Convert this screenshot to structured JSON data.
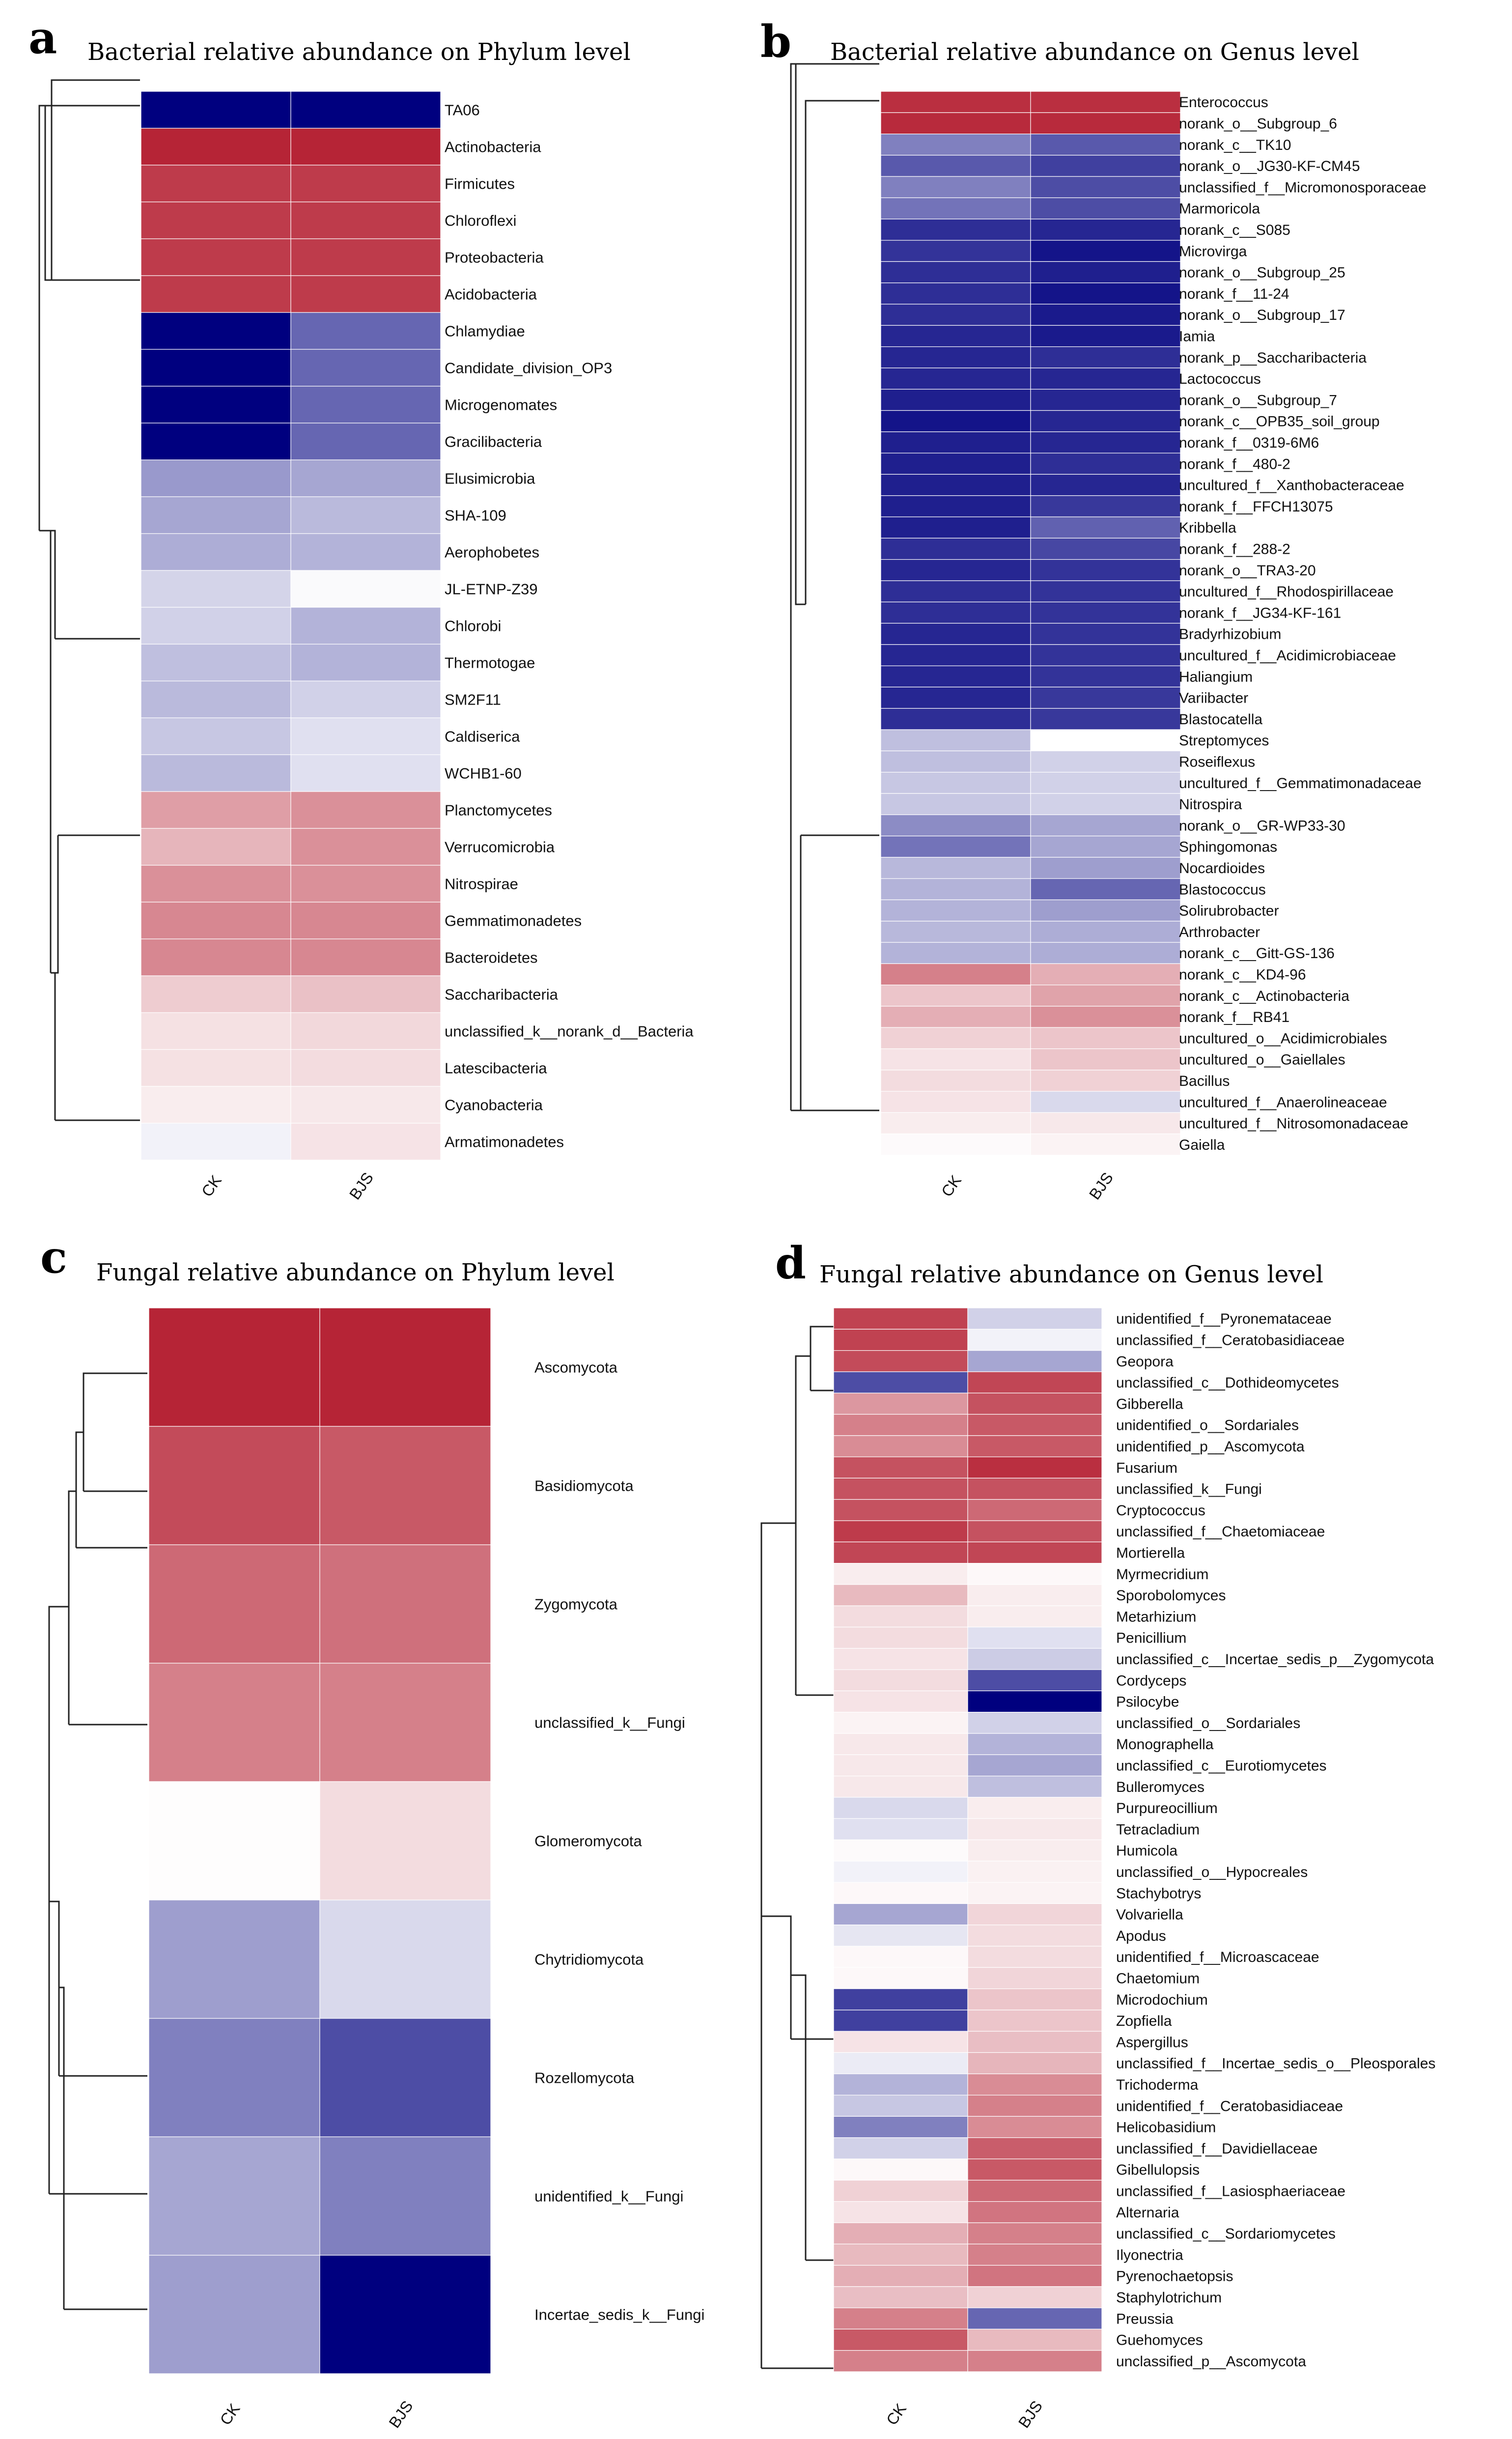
{
  "figure": {
    "columns": [
      "CK",
      "BJS"
    ]
  },
  "color_scale": {
    "low": "#00007f",
    "mid": "#ffffff",
    "high": "#b2182b"
  },
  "chart_data": [
    {
      "type": "heatmap",
      "panel": "a",
      "title": "Bacterial relative abundance on Phylum level",
      "columns": [
        "CK",
        "BJS"
      ],
      "rows": [
        "TA06",
        "Actinobacteria",
        "Firmicutes",
        "Chloroflexi",
        "Proteobacteria",
        "Acidobacteria",
        "Chlamydiae",
        "Candidate_division_OP3",
        "Microgenomates",
        "Gracilibacteria",
        "Elusimicrobia",
        "SHA-109",
        "Aerophobetes",
        "JL-ETNP-Z39",
        "Chlorobi",
        "Thermotogae",
        "SM2F11",
        "Caldiserica",
        "WCHB1-60",
        "Planctomycetes",
        "Verrucomicrobia",
        "Nitrospirae",
        "Gemmatimonadetes",
        "Bacteroidetes",
        "Saccharibacteria",
        "unclassified_k__norank_d__Bacteria",
        "Latescibacteria",
        "Cyanobacteria",
        "Armatimonadetes"
      ],
      "values": [
        [
          -1.0,
          -1.0
        ],
        [
          0.95,
          0.95
        ],
        [
          0.85,
          0.85
        ],
        [
          0.85,
          0.85
        ],
        [
          0.85,
          0.85
        ],
        [
          0.85,
          0.85
        ],
        [
          -1.0,
          -0.6
        ],
        [
          -1.0,
          -0.6
        ],
        [
          -1.0,
          -0.6
        ],
        [
          -1.0,
          -0.6
        ],
        [
          -0.4,
          -0.35
        ],
        [
          -0.35,
          -0.27
        ],
        [
          -0.32,
          -0.3
        ],
        [
          -0.17,
          -0.02
        ],
        [
          -0.18,
          -0.3
        ],
        [
          -0.25,
          -0.3
        ],
        [
          -0.27,
          -0.18
        ],
        [
          -0.22,
          -0.12
        ],
        [
          -0.27,
          -0.12
        ],
        [
          0.42,
          0.48
        ],
        [
          0.32,
          0.48
        ],
        [
          0.48,
          0.48
        ],
        [
          0.52,
          0.52
        ],
        [
          0.52,
          0.52
        ],
        [
          0.22,
          0.27
        ],
        [
          0.13,
          0.17
        ],
        [
          0.13,
          0.15
        ],
        [
          0.08,
          0.1
        ],
        [
          -0.05,
          0.12
        ]
      ]
    },
    {
      "type": "heatmap",
      "panel": "b",
      "title": "Bacterial relative abundance on Genus level",
      "columns": [
        "CK",
        "BJS"
      ],
      "rows": [
        "Enterococcus",
        "norank_o__Subgroup_6",
        "norank_c__TK10",
        "norank_o__JG30-KF-CM45",
        "unclassified_f__Micromonosporaceae",
        "Marmoricola",
        "norank_c__S085",
        "Microvirga",
        "norank_o__Subgroup_25",
        "norank_f__11-24",
        "norank_o__Subgroup_17",
        "Iamia",
        "norank_p__Saccharibacteria",
        "Lactococcus",
        "norank_o__Subgroup_7",
        "norank_c__OPB35_soil_group",
        "norank_f__0319-6M6",
        "norank_f__480-2",
        "uncultured_f__Xanthobacteraceae",
        "norank_f__FFCH13075",
        "Kribbella",
        "norank_f__288-2",
        "norank_o__TRA3-20",
        "uncultured_f__Rhodospirillaceae",
        "norank_f__JG34-KF-161",
        "Bradyrhizobium",
        "uncultured_f__Acidimicrobiaceae",
        "Haliangium",
        "Variibacter",
        "Blastocatella",
        "Streptomyces",
        "Roseiflexus",
        "uncultured_f__Gemmatimonadaceae",
        "Nitrospira",
        "norank_o__GR-WP33-30",
        "Sphingomonas",
        "Nocardioides",
        "Blastococcus",
        "Solirubrobacter",
        "Arthrobacter",
        "norank_c__Gitt-GS-136",
        "norank_c__KD4-96",
        "norank_c__Actinobacteria",
        "norank_f__RB41",
        "uncultured_o__Acidimicrobiales",
        "uncultured_o__Gaiellales",
        "Bacillus",
        "uncultured_f__Anaerolineaceae",
        "uncultured_f__Nitrosomonadaceae",
        "Gaiella"
      ],
      "values": [
        [
          0.9,
          0.9
        ],
        [
          0.92,
          0.92
        ],
        [
          -0.5,
          -0.65
        ],
        [
          -0.65,
          -0.75
        ],
        [
          -0.5,
          -0.7
        ],
        [
          -0.55,
          -0.7
        ],
        [
          -0.82,
          -0.85
        ],
        [
          -0.8,
          -0.92
        ],
        [
          -0.82,
          -0.88
        ],
        [
          -0.82,
          -0.92
        ],
        [
          -0.82,
          -0.9
        ],
        [
          -0.85,
          -0.9
        ],
        [
          -0.85,
          -0.82
        ],
        [
          -0.85,
          -0.85
        ],
        [
          -0.88,
          -0.85
        ],
        [
          -0.92,
          -0.85
        ],
        [
          -0.88,
          -0.85
        ],
        [
          -0.88,
          -0.82
        ],
        [
          -0.88,
          -0.85
        ],
        [
          -0.88,
          -0.78
        ],
        [
          -0.88,
          -0.62
        ],
        [
          -0.82,
          -0.72
        ],
        [
          -0.85,
          -0.8
        ],
        [
          -0.82,
          -0.8
        ],
        [
          -0.82,
          -0.8
        ],
        [
          -0.85,
          -0.8
        ],
        [
          -0.85,
          -0.8
        ],
        [
          -0.85,
          -0.8
        ],
        [
          -0.85,
          -0.78
        ],
        [
          -0.82,
          -0.78
        ],
        [
          -0.25,
          0.0
        ],
        [
          -0.25,
          -0.18
        ],
        [
          -0.22,
          -0.18
        ],
        [
          -0.22,
          -0.18
        ],
        [
          -0.45,
          -0.35
        ],
        [
          -0.55,
          -0.35
        ],
        [
          -0.28,
          -0.38
        ],
        [
          -0.3,
          -0.6
        ],
        [
          -0.3,
          -0.38
        ],
        [
          -0.28,
          -0.32
        ],
        [
          -0.3,
          -0.32
        ],
        [
          0.55,
          0.35
        ],
        [
          0.25,
          0.4
        ],
        [
          0.35,
          0.48
        ],
        [
          0.2,
          0.25
        ],
        [
          0.12,
          0.25
        ],
        [
          0.15,
          0.2
        ],
        [
          0.12,
          -0.15
        ],
        [
          0.08,
          0.1
        ],
        [
          0.02,
          0.05
        ]
      ]
    },
    {
      "type": "heatmap",
      "panel": "c",
      "title": "Fungal relative abundance on Phylum level",
      "columns": [
        "CK",
        "BJS"
      ],
      "rows": [
        "Ascomycota",
        "Basidiomycota",
        "Zygomycota",
        "unclassified_k__Fungi",
        "Glomeromycota",
        "Chytridiomycota",
        "Rozellomycota",
        "unidentified_k__Fungi",
        "Incertae_sedis_k__Fungi"
      ],
      "values": [
        [
          0.95,
          0.95
        ],
        [
          0.78,
          0.72
        ],
        [
          0.65,
          0.62
        ],
        [
          0.55,
          0.55
        ],
        [
          0.01,
          0.15
        ],
        [
          -0.38,
          -0.15
        ],
        [
          -0.5,
          -0.7
        ],
        [
          -0.35,
          -0.5
        ],
        [
          -0.38,
          -1.0
        ]
      ]
    },
    {
      "type": "heatmap",
      "panel": "d",
      "title": "Fungal relative abundance on Genus level",
      "columns": [
        "CK",
        "BJS"
      ],
      "rows": [
        "unidentified_f__Pyronemataceae",
        "unclassified_f__Ceratobasidiaceae",
        "Geopora",
        "unclassified_c__Dothideomycetes",
        "Gibberella",
        "unidentified_o__Sordariales",
        "unidentified_p__Ascomycota",
        "Fusarium",
        "unclassified_k__Fungi",
        "Cryptococcus",
        "unclassified_f__Chaetomiaceae",
        "Mortierella",
        "Myrmecridium",
        "Sporobolomyces",
        "Metarhizium",
        "Penicillium",
        "unclassified_c__Incertae_sedis_p__Zygomycota",
        "Cordyceps",
        "Psilocybe",
        "unclassified_o__Sordariales",
        "Monographella",
        "unclassified_c__Eurotiomycetes",
        "Bulleromyces",
        "Purpureocillium",
        "Tetracladium",
        "Humicola",
        "unclassified_o__Hypocreales",
        "Stachybotrys",
        "Volvariella",
        "Apodus",
        "unidentified_f__Microascaceae",
        "Chaetomium",
        "Microdochium",
        "Zopfiella",
        "Aspergillus",
        "unclassified_f__Incertae_sedis_o__Pleosporales",
        "Trichoderma",
        "unidentified_f__Ceratobasidiaceae",
        "Helicobasidium",
        "unclassified_f__Davidiellaceae",
        "Gibellulopsis",
        "unclassified_f__Lasiosphaeriaceae",
        "Alternaria",
        "unclassified_c__Sordariomycetes",
        "Ilyonectria",
        "Pyrenochaetopsis",
        "Staphylotrichum",
        "Preussia",
        "Guehomyces",
        "unclassified_p__Ascomycota"
      ],
      "values": [
        [
          0.82,
          -0.18
        ],
        [
          0.82,
          -0.05
        ],
        [
          0.78,
          -0.35
        ],
        [
          -0.7,
          0.8
        ],
        [
          0.45,
          0.75
        ],
        [
          0.55,
          0.72
        ],
        [
          0.5,
          0.72
        ],
        [
          0.75,
          0.9
        ],
        [
          0.75,
          0.75
        ],
        [
          0.75,
          0.65
        ],
        [
          0.85,
          0.75
        ],
        [
          0.8,
          0.8
        ],
        [
          0.08,
          0.03
        ],
        [
          0.3,
          0.08
        ],
        [
          0.15,
          0.08
        ],
        [
          0.15,
          -0.12
        ],
        [
          0.12,
          -0.2
        ],
        [
          0.15,
          -0.7
        ],
        [
          0.12,
          -1.0
        ],
        [
          0.05,
          -0.18
        ],
        [
          0.1,
          -0.3
        ],
        [
          0.1,
          -0.35
        ],
        [
          0.1,
          -0.25
        ],
        [
          -0.15,
          0.08
        ],
        [
          -0.12,
          0.1
        ],
        [
          0.02,
          0.08
        ],
        [
          -0.05,
          0.06
        ],
        [
          0.03,
          0.05
        ],
        [
          -0.35,
          0.18
        ],
        [
          -0.1,
          0.15
        ],
        [
          0.03,
          0.15
        ],
        [
          0.03,
          0.18
        ],
        [
          -0.75,
          0.25
        ],
        [
          -0.75,
          0.25
        ],
        [
          0.12,
          0.28
        ],
        [
          -0.08,
          0.32
        ],
        [
          -0.3,
          0.5
        ],
        [
          -0.22,
          0.55
        ],
        [
          -0.5,
          0.5
        ],
        [
          -0.18,
          0.7
        ],
        [
          0.03,
          0.72
        ],
        [
          0.2,
          0.65
        ],
        [
          0.12,
          0.6
        ],
        [
          0.35,
          0.55
        ],
        [
          0.3,
          0.55
        ],
        [
          0.35,
          0.6
        ],
        [
          0.28,
          0.2
        ],
        [
          0.55,
          -0.6
        ],
        [
          0.72,
          0.3
        ],
        [
          0.55,
          0.55
        ]
      ]
    }
  ]
}
